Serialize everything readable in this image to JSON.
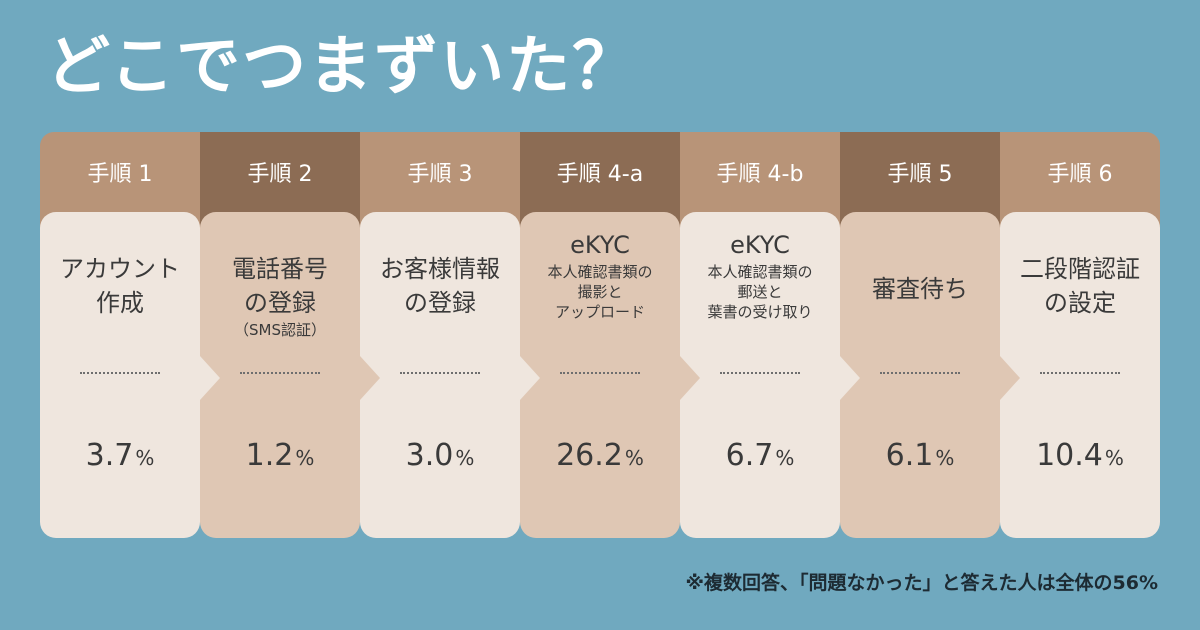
{
  "title": "どこでつまずいた？",
  "chart_data": {
    "type": "table",
    "unit": "%",
    "steps": [
      {
        "header": "手順 1",
        "label_lines": [
          "アカウント",
          "作成"
        ],
        "sub_lines": [],
        "value": 3.7,
        "value_text": "3.7"
      },
      {
        "header": "手順 2",
        "label_lines": [
          "電話番号",
          "の登録"
        ],
        "sub_lines": [
          "（SMS認証）"
        ],
        "value": 1.2,
        "value_text": "1.2"
      },
      {
        "header": "手順 3",
        "label_lines": [
          "お客様情報",
          "の登録"
        ],
        "sub_lines": [],
        "value": 3.0,
        "value_text": "3.0"
      },
      {
        "header": "手順 4-a",
        "label_lines": [
          "eKYC"
        ],
        "sub_lines": [
          "本人確認書類の",
          "撮影と",
          "アップロード"
        ],
        "value": 26.2,
        "value_text": "26.2"
      },
      {
        "header": "手順 4-b",
        "label_lines": [
          "eKYC"
        ],
        "sub_lines": [
          "本人確認書類の",
          "郵送と",
          "葉書の受け取り"
        ],
        "value": 6.7,
        "value_text": "6.7"
      },
      {
        "header": "手順 5",
        "label_lines": [
          "審査待ち"
        ],
        "sub_lines": [],
        "value": 6.1,
        "value_text": "6.1"
      },
      {
        "header": "手順 6",
        "label_lines": [
          "二段階認証",
          "の設定"
        ],
        "sub_lines": [],
        "value": 10.4,
        "value_text": "10.4"
      }
    ]
  },
  "footnote": "※複数回答、「問題なかった」と答えた人は全体の56%",
  "colors": {
    "background": "#70a9bf",
    "header_light": "#b89478",
    "header_dark": "#8c6c54",
    "card_light": "#efe6de",
    "card_tan": "#dfc7b4",
    "text": "#3a3a3a"
  }
}
